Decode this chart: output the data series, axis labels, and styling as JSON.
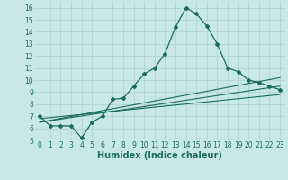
{
  "xlabel": "Humidex (Indice chaleur)",
  "bg_color": "#c8e8e8",
  "grid_color": "#b0d0d0",
  "line_color": "#1a6b5a",
  "xlim_min": -0.5,
  "xlim_max": 23.5,
  "ylim_min": 5,
  "ylim_max": 16.5,
  "xticks": [
    0,
    1,
    2,
    3,
    4,
    5,
    6,
    7,
    8,
    9,
    10,
    11,
    12,
    13,
    14,
    15,
    16,
    17,
    18,
    19,
    20,
    21,
    22,
    23
  ],
  "yticks": [
    5,
    6,
    7,
    8,
    9,
    10,
    11,
    12,
    13,
    14,
    15,
    16
  ],
  "line1_x": [
    0,
    1,
    2,
    3,
    4,
    5,
    6,
    7,
    8,
    9,
    10,
    11,
    12,
    13,
    14,
    15,
    16,
    17,
    18,
    19,
    20,
    21,
    22,
    23
  ],
  "line1_y": [
    7.0,
    6.2,
    6.2,
    6.2,
    5.2,
    6.5,
    7.0,
    8.4,
    8.5,
    9.5,
    10.5,
    11.0,
    12.2,
    14.4,
    16.0,
    15.5,
    14.5,
    13.0,
    11.0,
    10.7,
    10.0,
    9.8,
    9.5,
    9.2
  ],
  "line2_x": [
    0,
    23
  ],
  "line2_y": [
    6.8,
    8.8
  ],
  "line3_x": [
    0,
    23
  ],
  "line3_y": [
    6.5,
    9.5
  ],
  "line4_x": [
    0,
    23
  ],
  "line4_y": [
    6.5,
    10.2
  ],
  "tick_fontsize": 5.5,
  "xlabel_fontsize": 7
}
